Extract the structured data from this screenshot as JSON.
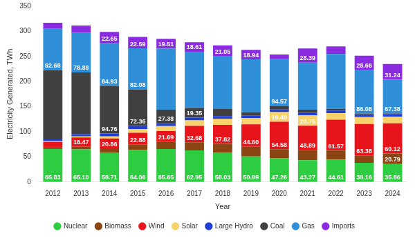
{
  "chart_data": {
    "type": "bar",
    "stacked": true,
    "grid": false,
    "legend": "bottom",
    "x_label": "Year",
    "y_label": "Electricity Generated, TWh",
    "categories": [
      "2012",
      "2013",
      "2014",
      "2015",
      "2016",
      "2017",
      "2018",
      "2019",
      "2020",
      "2021",
      "2022",
      "2023",
      "2024"
    ],
    "ylim": [
      0,
      350
    ],
    "yticks": [
      0,
      50,
      100,
      150,
      200,
      250,
      300,
      350
    ],
    "series": [
      {
        "name": "Nuclear",
        "color": "#2ecc40",
        "values": [
          65.83,
          65.1,
          58.71,
          64.06,
          65.65,
          62.95,
          58.03,
          50.99,
          47.26,
          43.27,
          44.61,
          38.16,
          35.86
        ],
        "value_labels": [
          "65.83",
          "65.10",
          "58.71",
          "64.06",
          "65.65",
          "62.95",
          "58.03",
          "50.99",
          "47.26",
          "43.27",
          "44.61",
          "38.16",
          "35.86"
        ]
      },
      {
        "name": "Biomass",
        "color": "#8b4513",
        "values": [
          2,
          5,
          7,
          11,
          14,
          16,
          18,
          19,
          18,
          20,
          18,
          14,
          20.79
        ],
        "value_labels": [
          null,
          null,
          null,
          null,
          null,
          null,
          null,
          null,
          null,
          null,
          null,
          null,
          "20.79"
        ]
      },
      {
        "name": "Wind",
        "color": "#e8141c",
        "values": [
          12,
          18.47,
          20.86,
          22.88,
          21.69,
          32.68,
          37.82,
          44.8,
          54.58,
          48.89,
          61.57,
          63.38,
          60.12
        ],
        "value_labels": [
          null,
          "18.47",
          "20.86",
          "22.88",
          "21.69",
          "32.68",
          "37.82",
          "44.80",
          "54.58",
          "48.89",
          "61.57",
          "63.38",
          "60.12"
        ]
      },
      {
        "name": "Solar",
        "color": "#f7d16a",
        "values": [
          1.3,
          2,
          4,
          7.5,
          10,
          11,
          12,
          12.5,
          19.4,
          20.75,
          13,
          13.5,
          13.5
        ],
        "value_labels": [
          null,
          null,
          null,
          null,
          null,
          null,
          null,
          null,
          "19.40",
          "20.75",
          null,
          null,
          null
        ]
      },
      {
        "name": "Large Hydro",
        "color": "#1f3fd6",
        "values": [
          5.3,
          4.7,
          5.9,
          6.3,
          5.4,
          5.5,
          5.4,
          5.5,
          5,
          5,
          5,
          4.5,
          4.5
        ],
        "value_labels": [
          null,
          null,
          null,
          null,
          null,
          null,
          null,
          null,
          null,
          null,
          null,
          null,
          null
        ]
      },
      {
        "name": "Coal",
        "color": "#404040",
        "values": [
          136,
          123,
          94.76,
          72.36,
          27.38,
          19.35,
          14,
          6,
          6.7,
          6,
          4,
          3,
          1.5
        ],
        "value_labels": [
          null,
          null,
          "94.76",
          "72.36",
          "27.38",
          "19.35",
          null,
          null,
          null,
          null,
          null,
          null,
          null
        ]
      },
      {
        "name": "Gas",
        "color": "#2f8fd8",
        "values": [
          82.68,
          78.88,
          84.93,
          82.08,
          121.4,
          112,
          105.7,
          105.3,
          94.57,
          93.7,
          108.8,
          86.08,
          67.38
        ],
        "value_labels": [
          "82.68",
          "78.88",
          "84.93",
          "82.08",
          null,
          null,
          null,
          null,
          "94.57",
          null,
          null,
          "86.08",
          "67.38"
        ]
      },
      {
        "name": "Imports",
        "color": "#8a2be2",
        "values": [
          12,
          14.3,
          22.65,
          22.59,
          19.51,
          18.61,
          21.05,
          18.94,
          8.5,
          28.39,
          15,
          28.66,
          31.24
        ],
        "value_labels": [
          null,
          null,
          "22.65",
          "22.59",
          "19.51",
          "18.61",
          "21.05",
          "18.94",
          null,
          "28.39",
          null,
          "28.66",
          "31.24"
        ]
      }
    ]
  }
}
